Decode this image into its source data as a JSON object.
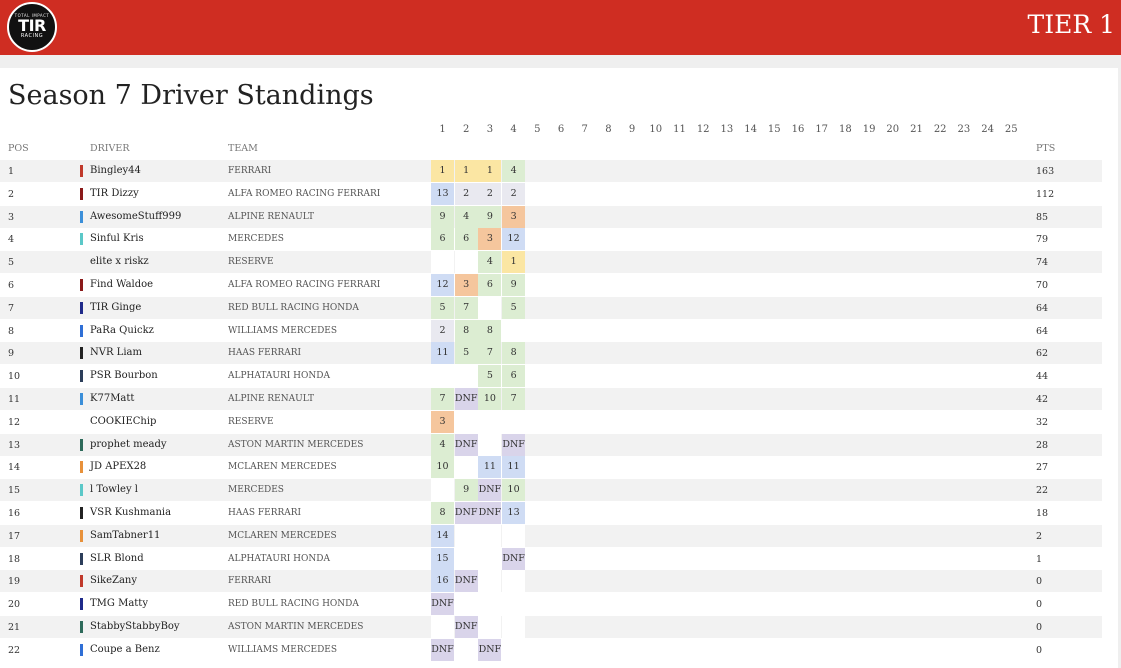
{
  "header": {
    "logo": {
      "top": "TOTAL IMPACT",
      "main": "TIR",
      "sub": "RACING"
    },
    "tier": "TIER 1"
  },
  "page_title": "Season 7 Driver Standings",
  "race_numbers": [
    "1",
    "2",
    "3",
    "4",
    "5",
    "6",
    "7",
    "8",
    "9",
    "10",
    "11",
    "12",
    "13",
    "14",
    "15",
    "16",
    "17",
    "18",
    "19",
    "20",
    "21",
    "22",
    "23",
    "24",
    "25"
  ],
  "columns": {
    "pos": "POS",
    "driver": "DRIVER",
    "team": "TEAM",
    "pts": "PTS"
  },
  "team_colors": {
    "FERRARI": "#c0392b",
    "ALFA ROMEO RACING FERRARI": "#8b1a1a",
    "ALPINE RENAULT": "#3b8fd9",
    "MERCEDES": "#5bc8c8",
    "RED BULL RACING HONDA": "#1f2a8a",
    "WILLIAMS MERCEDES": "#2f6fd6",
    "HAAS FERRARI": "#222222",
    "ALPHATAURI HONDA": "#2c3e5a",
    "ASTON MARTIN MERCEDES": "#2d6a5a",
    "MCLAREN MERCEDES": "#e8913a"
  },
  "result_colors": {
    "gold": "#fbe6a3",
    "silver": "#e9e9f0",
    "bronze": "#f5c69d",
    "green": "#dcedd2",
    "blue": "#cfdcf4",
    "dnf": "#d9d4ea"
  },
  "standings": [
    {
      "pos": "1",
      "driver": "Bingley44",
      "team": "FERRARI",
      "pts": "163",
      "results": [
        "1",
        "1",
        "1",
        "4"
      ]
    },
    {
      "pos": "2",
      "driver": "TIR Dizzy",
      "team": "ALFA ROMEO RACING FERRARI",
      "pts": "112",
      "results": [
        "13",
        "2",
        "2",
        "2"
      ]
    },
    {
      "pos": "3",
      "driver": "AwesomeStuff999",
      "team": "ALPINE RENAULT",
      "pts": "85",
      "results": [
        "9",
        "4",
        "9",
        "3"
      ]
    },
    {
      "pos": "4",
      "driver": "Sinful Kris",
      "team": "MERCEDES",
      "pts": "79",
      "results": [
        "6",
        "6",
        "3",
        "12"
      ]
    },
    {
      "pos": "5",
      "driver": "elite x riskz",
      "team": "RESERVE",
      "pts": "74",
      "results": [
        "",
        "",
        "4",
        "1"
      ]
    },
    {
      "pos": "6",
      "driver": "Find Waldoe",
      "team": "ALFA ROMEO RACING FERRARI",
      "pts": "70",
      "results": [
        "12",
        "3",
        "6",
        "9"
      ]
    },
    {
      "pos": "7",
      "driver": "TIR Ginge",
      "team": "RED BULL RACING HONDA",
      "pts": "64",
      "results": [
        "5",
        "7",
        "",
        "5"
      ]
    },
    {
      "pos": "8",
      "driver": "PaRa Quickz",
      "team": "WILLIAMS MERCEDES",
      "pts": "64",
      "results": [
        "2",
        "8",
        "8",
        ""
      ]
    },
    {
      "pos": "9",
      "driver": "NVR Liam",
      "team": "HAAS FERRARI",
      "pts": "62",
      "results": [
        "11",
        "5",
        "7",
        "8"
      ]
    },
    {
      "pos": "10",
      "driver": "PSR Bourbon",
      "team": "ALPHATAURI HONDA",
      "pts": "44",
      "results": [
        "",
        "",
        "5",
        "6"
      ]
    },
    {
      "pos": "11",
      "driver": "K77Matt",
      "team": "ALPINE RENAULT",
      "pts": "42",
      "results": [
        "7",
        "DNF",
        "10",
        "7"
      ]
    },
    {
      "pos": "12",
      "driver": "COOKIEChip",
      "team": "RESERVE",
      "pts": "32",
      "results": [
        "3",
        "",
        "",
        ""
      ]
    },
    {
      "pos": "13",
      "driver": "prophet meady",
      "team": "ASTON MARTIN MERCEDES",
      "pts": "28",
      "results": [
        "4",
        "DNF",
        "",
        "DNF"
      ]
    },
    {
      "pos": "14",
      "driver": "JD APEX28",
      "team": "MCLAREN MERCEDES",
      "pts": "27",
      "results": [
        "10",
        "",
        "11",
        "11"
      ]
    },
    {
      "pos": "15",
      "driver": "l Towley l",
      "team": "MERCEDES",
      "pts": "22",
      "results": [
        "",
        "9",
        "DNF",
        "10"
      ]
    },
    {
      "pos": "16",
      "driver": "VSR Kushmania",
      "team": "HAAS FERRARI",
      "pts": "18",
      "results": [
        "8",
        "DNF",
        "DNF",
        "13"
      ]
    },
    {
      "pos": "17",
      "driver": "SamTabner11",
      "team": "MCLAREN MERCEDES",
      "pts": "2",
      "results": [
        "14",
        "",
        "",
        ""
      ]
    },
    {
      "pos": "18",
      "driver": "SLR Blond",
      "team": "ALPHATAURI HONDA",
      "pts": "1",
      "results": [
        "15",
        "",
        "",
        "DNF"
      ]
    },
    {
      "pos": "19",
      "driver": "SikeZany",
      "team": "FERRARI",
      "pts": "0",
      "results": [
        "16",
        "DNF",
        "",
        ""
      ]
    },
    {
      "pos": "20",
      "driver": "TMG Matty",
      "team": "RED BULL RACING HONDA",
      "pts": "0",
      "results": [
        "DNF",
        "",
        "",
        ""
      ]
    },
    {
      "pos": "21",
      "driver": "StabbyStabbyBoy",
      "team": "ASTON MARTIN MERCEDES",
      "pts": "0",
      "results": [
        "",
        "DNF",
        "",
        ""
      ]
    },
    {
      "pos": "22",
      "driver": "Coupe a Benz",
      "team": "WILLIAMS MERCEDES",
      "pts": "0",
      "results": [
        "DNF",
        "",
        "DNF",
        ""
      ]
    }
  ]
}
